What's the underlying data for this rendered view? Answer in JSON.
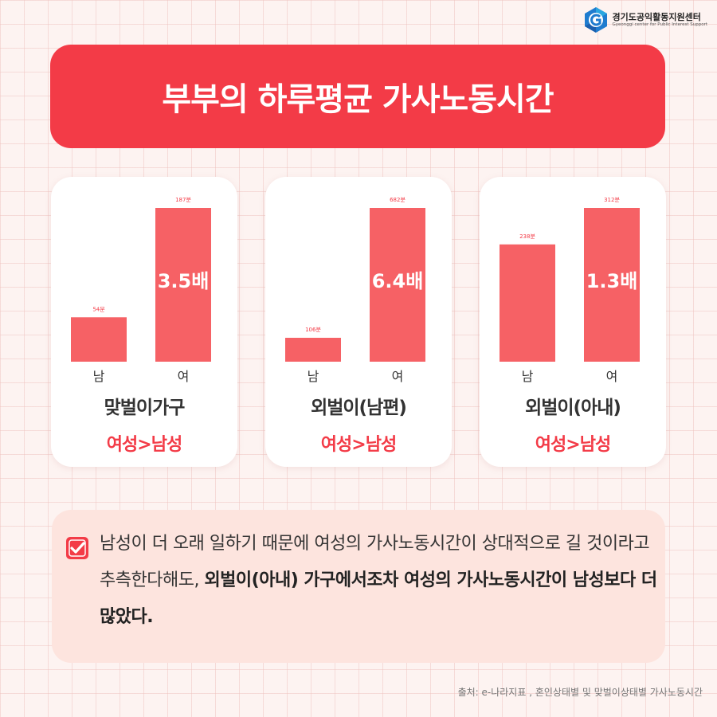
{
  "logo": {
    "name_kr": "경기도공익활동지원센터",
    "name_en": "Gyeonggi center for Public Interest Support",
    "icon": "gyeonggi-logo-icon"
  },
  "title": "부부의 하루평균 가사노동시간",
  "colors": {
    "accent": "#f33b47",
    "bar": "#f66165",
    "note_bg": "#fde4de"
  },
  "chart_data": [
    {
      "type": "bar",
      "categories": [
        "남",
        "여"
      ],
      "values": [
        54,
        187
      ],
      "value_labels": [
        "54분",
        "187분"
      ],
      "ratio_label": "3.5배",
      "label": "맞벌이가구",
      "comparison": "여성>남성"
    },
    {
      "type": "bar",
      "categories": [
        "남",
        "여"
      ],
      "values": [
        106,
        682
      ],
      "value_labels": [
        "106분",
        "682분"
      ],
      "ratio_label": "6.4배",
      "label": "외벌이(남편)",
      "comparison": "여성>남성"
    },
    {
      "type": "bar",
      "categories": [
        "남",
        "여"
      ],
      "values": [
        238,
        312
      ],
      "value_labels": [
        "238분",
        "312분"
      ],
      "ratio_label": "1.3배",
      "label": "외벌이(아내)",
      "comparison": "여성>남성"
    }
  ],
  "note": {
    "icon": "checkbox-checked-icon",
    "normal": "남성이 더 오래 일하기 때문에 여성의 가사노동시간이 상대적으로 길 것이라고 추측한다해도, ",
    "bold": "외벌이(아내) 가구에서조차 여성의 가사노동시간이 남성보다 더 많았다."
  },
  "source": "출처: e-나라지표 , 혼인상태별 및 맞벌이상태별 가사노동시간"
}
